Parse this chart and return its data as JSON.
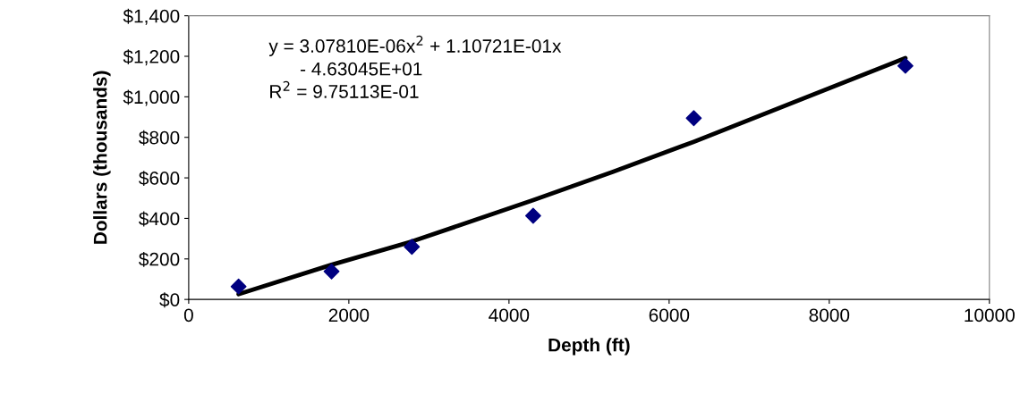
{
  "chart_data": {
    "type": "scatter",
    "xlabel": "Depth (ft)",
    "ylabel": "Dollars (thousands)",
    "xlim": [
      0,
      10000
    ],
    "xticks": [
      0,
      2000,
      4000,
      6000,
      8000,
      10000
    ],
    "ylim": [
      0,
      1400
    ],
    "yticks": [
      {
        "value": 0,
        "label": "$0"
      },
      {
        "value": 200,
        "label": "$200"
      },
      {
        "value": 400,
        "label": "$400"
      },
      {
        "value": 600,
        "label": "$600"
      },
      {
        "value": 800,
        "label": "$800"
      },
      {
        "value": 1000,
        "label": "$1,000"
      },
      {
        "value": 1200,
        "label": "$1,200"
      },
      {
        "value": 1400,
        "label": "$1,400"
      }
    ],
    "grid": false,
    "legend": false,
    "series": [
      {
        "marker": "diamond",
        "color": "#000080",
        "x": [
          623,
          1784,
          2787,
          4302,
          6308,
          8951
        ],
        "values": [
          64,
          138,
          260,
          413,
          895,
          1153
        ]
      },
      {
        "type": "line",
        "marker": "none",
        "line_style": "solid",
        "color": "#000000",
        "x": [
          623,
          1784,
          2787,
          4302,
          5300,
          6308,
          8951
        ],
        "values": [
          26,
          171,
          286,
          490,
          630,
          778,
          1191
        ]
      }
    ],
    "annotations": [
      "y = 3.07810E-06x$^{2}$ + 1.10721E-01x\n      - 4.63045E+01\nR$^{2}$ = 9.75113E-01"
    ]
  }
}
